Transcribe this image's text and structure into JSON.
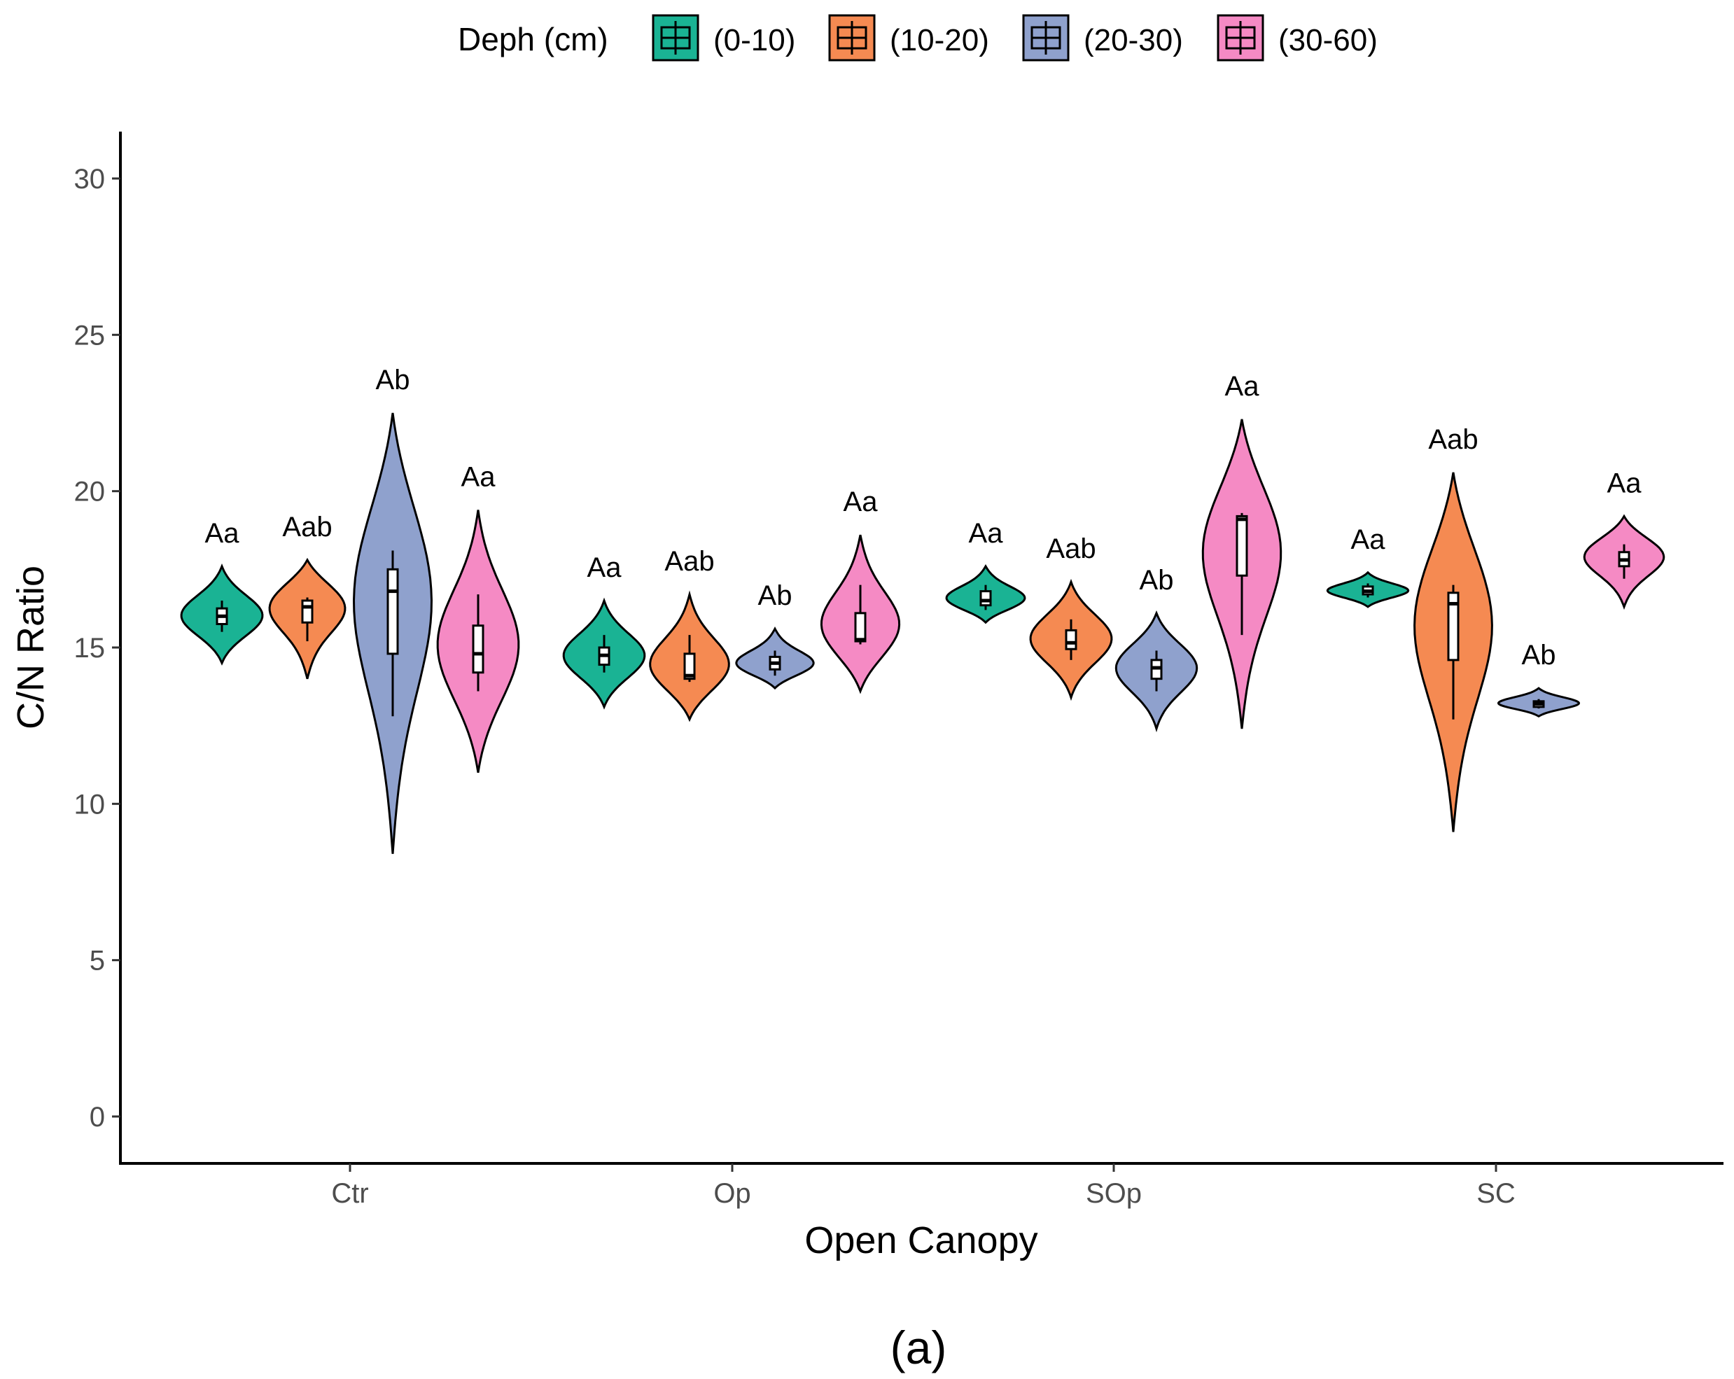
{
  "chart_data": {
    "type": "violin",
    "title": "",
    "xlabel": "Open Canopy",
    "ylabel": "C/N Ratio",
    "caption": "(a)",
    "ylim": [
      -1.5,
      31.5
    ],
    "yticks": [
      0,
      5,
      10,
      15,
      20,
      25,
      30
    ],
    "categories": [
      "Ctr",
      "Op",
      "SOp",
      "SC"
    ],
    "legend": {
      "title": "Deph (cm)",
      "position": "top",
      "entries": [
        "(0-10)",
        "(10-20)",
        "(20-30)",
        "(30-60)"
      ]
    },
    "colors": {
      "(0-10)": "#1ab394",
      "(10-20)": "#f58a52",
      "(20-30)": "#8fa1cd",
      "(30-60)": "#f58ac4"
    },
    "series": [
      {
        "name": "(0-10)",
        "groups": [
          {
            "category": "Ctr",
            "min": 14.5,
            "max": 17.6,
            "peak": 16.0,
            "q1": 15.75,
            "median": 16.0,
            "q3": 16.25,
            "wlo": 15.5,
            "whi": 16.5,
            "label": "Aa"
          },
          {
            "category": "Op",
            "min": 13.1,
            "max": 16.5,
            "peak": 14.7,
            "q1": 14.45,
            "median": 14.75,
            "q3": 15.0,
            "wlo": 14.2,
            "whi": 15.4,
            "label": "Aa"
          },
          {
            "category": "SOp",
            "min": 15.8,
            "max": 17.6,
            "peak": 16.5,
            "q1": 16.35,
            "median": 16.5,
            "q3": 16.8,
            "wlo": 16.2,
            "whi": 17.0,
            "label": "Aa"
          },
          {
            "category": "SC",
            "min": 16.3,
            "max": 17.4,
            "peak": 16.8,
            "q1": 16.7,
            "median": 16.8,
            "q3": 16.95,
            "wlo": 16.6,
            "whi": 17.05,
            "label": "Aa"
          }
        ]
      },
      {
        "name": "(10-20)",
        "groups": [
          {
            "category": "Ctr",
            "min": 14.0,
            "max": 17.8,
            "peak": 16.5,
            "q1": 15.8,
            "median": 16.3,
            "q3": 16.5,
            "wlo": 15.2,
            "whi": 16.6,
            "label": "Aab"
          },
          {
            "category": "Op",
            "min": 12.7,
            "max": 16.7,
            "peak": 14.3,
            "q1": 14.0,
            "median": 14.1,
            "q3": 14.8,
            "wlo": 13.9,
            "whi": 15.4,
            "label": "Aab"
          },
          {
            "category": "SOp",
            "min": 13.4,
            "max": 17.1,
            "peak": 15.3,
            "q1": 14.95,
            "median": 15.15,
            "q3": 15.55,
            "wlo": 14.6,
            "whi": 15.9,
            "label": "Aab"
          },
          {
            "category": "SC",
            "min": 9.1,
            "max": 20.6,
            "peak": 16.3,
            "q1": 14.6,
            "median": 16.4,
            "q3": 16.75,
            "wlo": 12.7,
            "whi": 17.0,
            "label": "Aab"
          }
        ]
      },
      {
        "name": "(20-30)",
        "groups": [
          {
            "category": "Ctr",
            "min": 8.4,
            "max": 22.5,
            "peak": 17.2,
            "q1": 14.8,
            "median": 16.8,
            "q3": 17.5,
            "wlo": 12.8,
            "whi": 18.1,
            "label": "Ab"
          },
          {
            "category": "Op",
            "min": 13.7,
            "max": 15.6,
            "peak": 14.4,
            "q1": 14.3,
            "median": 14.5,
            "q3": 14.7,
            "wlo": 14.1,
            "whi": 14.9,
            "label": "Ab"
          },
          {
            "category": "SOp",
            "min": 12.4,
            "max": 16.1,
            "peak": 14.4,
            "q1": 14.0,
            "median": 14.35,
            "q3": 14.6,
            "wlo": 13.6,
            "whi": 14.9,
            "label": "Ab"
          },
          {
            "category": "SC",
            "min": 12.8,
            "max": 13.7,
            "peak": 13.2,
            "q1": 13.1,
            "median": 13.2,
            "q3": 13.28,
            "wlo": 13.05,
            "whi": 13.35,
            "label": "Ab"
          }
        ]
      },
      {
        "name": "(30-60)",
        "groups": [
          {
            "category": "Ctr",
            "min": 11.0,
            "max": 19.4,
            "peak": 15.0,
            "q1": 14.2,
            "median": 14.8,
            "q3": 15.7,
            "wlo": 13.6,
            "whi": 16.7,
            "label": "Aa"
          },
          {
            "category": "Op",
            "min": 13.6,
            "max": 18.6,
            "peak": 15.5,
            "q1": 15.2,
            "median": 15.25,
            "q3": 16.1,
            "wlo": 15.1,
            "whi": 17.0,
            "label": "Aa"
          },
          {
            "category": "SOp",
            "min": 12.4,
            "max": 22.3,
            "peak": 18.5,
            "q1": 17.3,
            "median": 19.1,
            "q3": 19.2,
            "wlo": 15.4,
            "whi": 19.3,
            "label": "Aa"
          },
          {
            "category": "SC",
            "min": 16.3,
            "max": 19.2,
            "peak": 18.0,
            "q1": 17.6,
            "median": 17.8,
            "q3": 18.05,
            "wlo": 17.2,
            "whi": 18.3,
            "label": "Aa"
          }
        ]
      }
    ]
  }
}
